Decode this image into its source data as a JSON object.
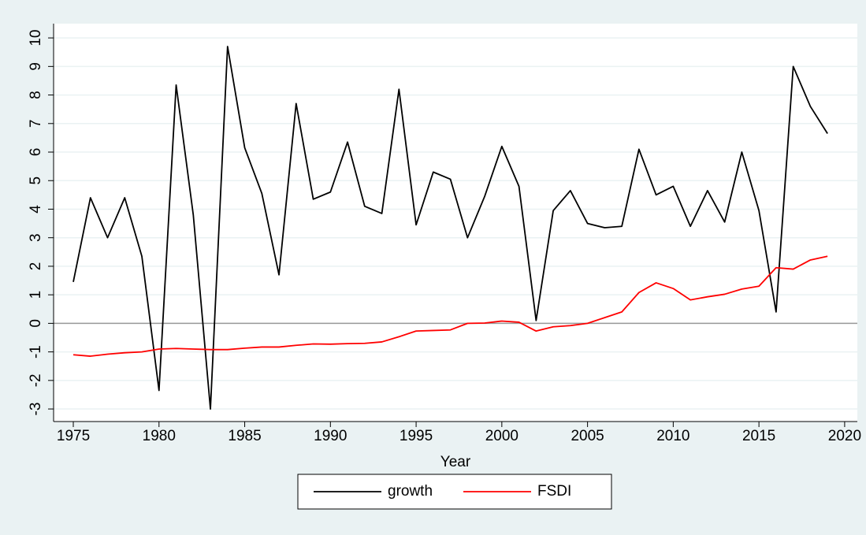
{
  "chart_data": {
    "type": "line",
    "x_label": "Year",
    "x": [
      1975,
      1976,
      1977,
      1978,
      1979,
      1980,
      1981,
      1982,
      1983,
      1984,
      1985,
      1986,
      1987,
      1988,
      1989,
      1990,
      1991,
      1992,
      1993,
      1994,
      1995,
      1996,
      1997,
      1998,
      1999,
      2000,
      2001,
      2002,
      2003,
      2004,
      2005,
      2006,
      2007,
      2008,
      2009,
      2010,
      2011,
      2012,
      2013,
      2014,
      2015,
      2016,
      2017,
      2018,
      2019
    ],
    "series": [
      {
        "name": "growth",
        "color": "#000000",
        "values": [
          1.45,
          4.4,
          3.0,
          4.4,
          2.35,
          -2.35,
          8.35,
          3.8,
          -3.0,
          9.7,
          6.15,
          4.55,
          1.7,
          7.7,
          4.35,
          4.6,
          6.35,
          4.1,
          3.85,
          8.2,
          3.45,
          5.3,
          5.05,
          3.0,
          4.45,
          6.2,
          4.8,
          0.1,
          3.95,
          4.65,
          3.5,
          3.35,
          3.4,
          6.1,
          4.5,
          4.8,
          3.4,
          4.65,
          3.55,
          6.0,
          3.95,
          0.4,
          9.0,
          7.6,
          6.65
        ]
      },
      {
        "name": "FSDI",
        "color": "#ff0000",
        "values": [
          -1.1,
          -1.15,
          -1.08,
          -1.03,
          -1.0,
          -0.9,
          -0.88,
          -0.9,
          -0.92,
          -0.92,
          -0.87,
          -0.83,
          -0.83,
          -0.77,
          -0.72,
          -0.73,
          -0.71,
          -0.7,
          -0.65,
          -0.47,
          -0.27,
          -0.25,
          -0.23,
          0.0,
          0.01,
          0.08,
          0.04,
          -0.27,
          -0.12,
          -0.08,
          0.0,
          0.2,
          0.4,
          1.08,
          1.42,
          1.22,
          0.82,
          0.93,
          1.02,
          1.2,
          1.3,
          1.95,
          1.9,
          2.22,
          2.35
        ]
      }
    ],
    "xlim": [
      1973.85,
      2020.74
    ],
    "xticks": [
      1975,
      1980,
      1985,
      1990,
      1995,
      2000,
      2005,
      2010,
      2015,
      2020
    ],
    "ylim": [
      -3.44,
      10.5
    ],
    "yticks": [
      -3,
      -2,
      -1,
      0,
      1,
      2,
      3,
      4,
      5,
      6,
      7,
      8,
      9,
      10
    ],
    "yline": 0,
    "grid": true,
    "legend": "bottom"
  }
}
